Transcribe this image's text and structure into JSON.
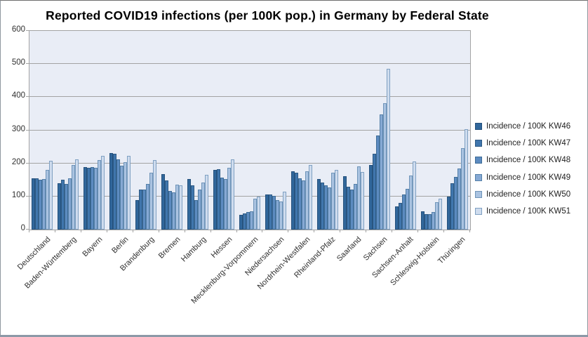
{
  "chart_data": {
    "type": "bar",
    "title": "Reported COVID19 infections (per 100K pop.) in Germany by Federal State",
    "categories": [
      "Deutschland",
      "Baden-Württemberg",
      "Bayern",
      "Berlin",
      "Brandenburg",
      "Bremen",
      "Hamburg",
      "Hessen",
      "Mecklenburg-Vorpommern",
      "Niedersachsen",
      "Nordrhein-Westfalen",
      "Rheinland-Pfalz",
      "Saarland",
      "Sachsen",
      "Sachsen-Anhalt",
      "Schleswig-Holstein",
      "Thüringen"
    ],
    "series": [
      {
        "name": "Incidence / 100K KW46",
        "color": "#31679B",
        "border": "#24507C",
        "values": [
          155,
          140,
          189,
          232,
          90,
          167,
          153,
          180,
          44,
          106,
          176,
          153,
          161,
          196,
          71,
          55,
          100
        ]
      },
      {
        "name": "Incidence / 100K KW47",
        "color": "#4076AD",
        "border": "#2E5A84",
        "values": [
          154,
          151,
          187,
          230,
          121,
          148,
          134,
          182,
          49,
          105,
          171,
          142,
          129,
          228,
          81,
          47,
          139
        ]
      },
      {
        "name": "Incidence / 100K KW48",
        "color": "#5C8BC0",
        "border": "#3E6C96",
        "values": [
          150,
          138,
          188,
          213,
          121,
          117,
          89,
          157,
          52,
          102,
          154,
          134,
          121,
          284,
          105,
          47,
          159
        ]
      },
      {
        "name": "Incidence / 100K KW49",
        "color": "#86A9D4",
        "border": "#5580A8",
        "values": [
          153,
          155,
          186,
          192,
          138,
          112,
          121,
          153,
          55,
          89,
          148,
          128,
          137,
          348,
          124,
          53,
          185
        ]
      },
      {
        "name": "Incidence / 100K KW50",
        "color": "#AAC3E1",
        "border": "#6F94B8",
        "values": [
          180,
          194,
          210,
          204,
          171,
          136,
          143,
          187,
          93,
          85,
          175,
          172,
          190,
          381,
          163,
          83,
          245
        ]
      },
      {
        "name": "Incidence / 100K KW51",
        "color": "#CFDCEE",
        "border": "#7FA0C2",
        "values": [
          208,
          213,
          223,
          223,
          209,
          133,
          165,
          211,
          99,
          115,
          195,
          181,
          174,
          486,
          206,
          94,
          303
        ]
      }
    ],
    "ylim": [
      0,
      600
    ],
    "yticks": [
      0,
      100,
      200,
      300,
      400,
      500,
      600
    ],
    "grid": true,
    "legend_position": "right",
    "style": {
      "plot_bg": "#E9EDF6",
      "gridline": "#A3A3A3",
      "axis_text": "#303030",
      "title_color": "#000000",
      "frame_border": "#8C99A7"
    }
  }
}
